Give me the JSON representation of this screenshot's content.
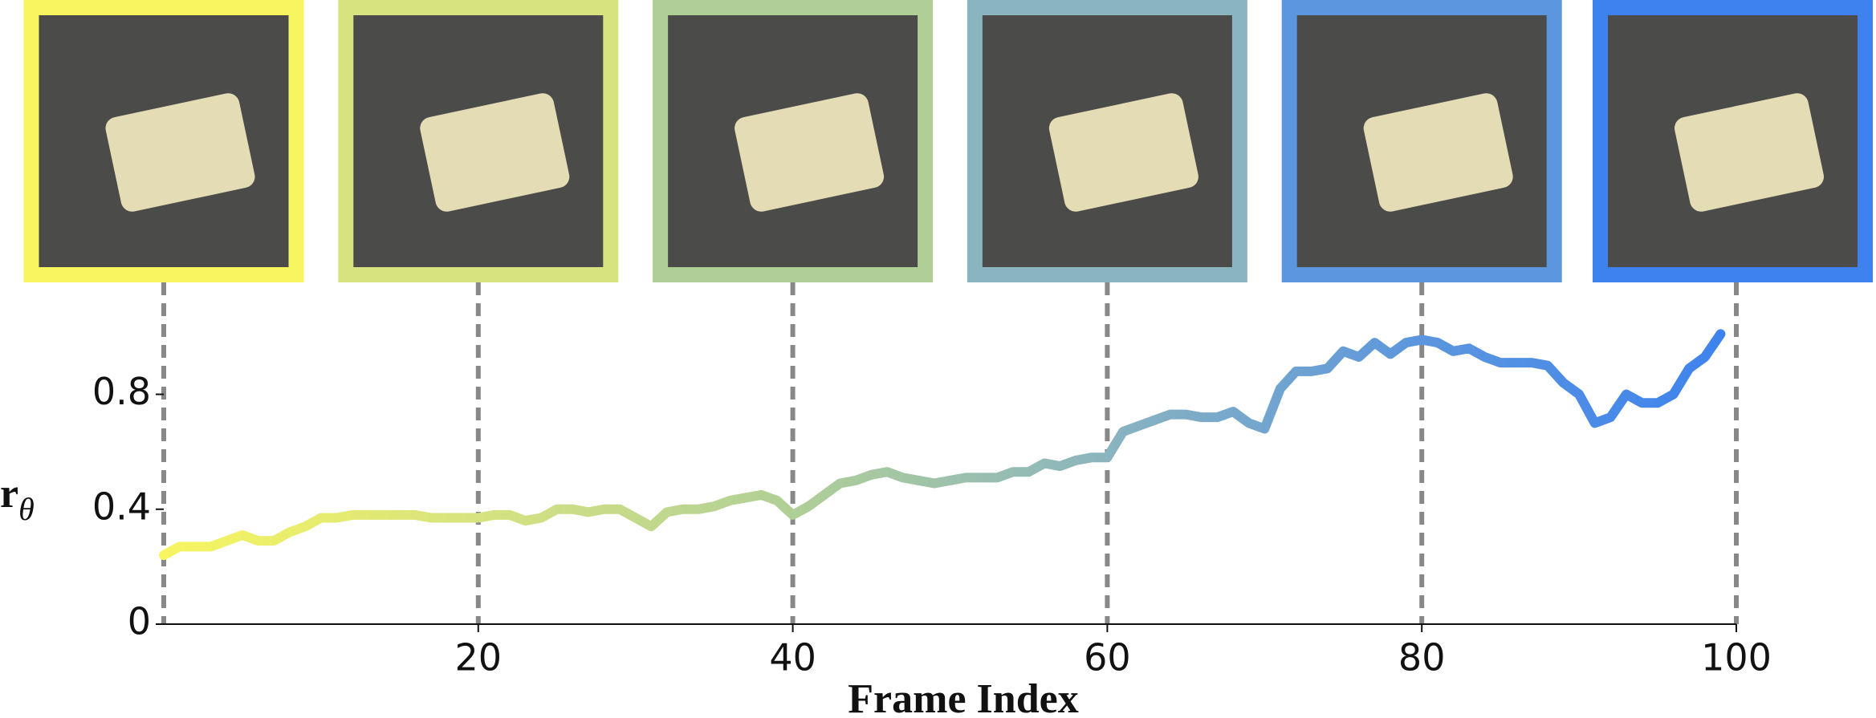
{
  "chart_data": {
    "type": "line",
    "xlabel": "Frame Index",
    "ylabel": {
      "base": "r",
      "sub": "θ"
    },
    "xlim": [
      0,
      100
    ],
    "xticks": [
      20,
      40,
      60,
      80,
      100
    ],
    "ylim": [
      0,
      1.05
    ],
    "yticks": [
      0,
      0.4,
      0.8
    ],
    "keyframes": [
      0,
      20,
      40,
      60,
      80,
      100
    ],
    "keyframe_colors": [
      "#f7f560",
      "#d6e37f",
      "#b0cf97",
      "#8ab4bf",
      "#5b96de",
      "#3d82ee"
    ],
    "x": [
      0,
      1,
      2,
      3,
      4,
      5,
      6,
      7,
      8,
      9,
      10,
      11,
      12,
      13,
      14,
      15,
      16,
      17,
      18,
      19,
      20,
      21,
      22,
      23,
      24,
      25,
      26,
      27,
      28,
      29,
      30,
      31,
      32,
      33,
      34,
      35,
      36,
      37,
      38,
      39,
      40,
      41,
      42,
      43,
      44,
      45,
      46,
      47,
      48,
      49,
      50,
      51,
      52,
      53,
      54,
      55,
      56,
      57,
      58,
      59,
      60,
      61,
      62,
      63,
      64,
      65,
      66,
      67,
      68,
      69,
      70,
      71,
      72,
      73,
      74,
      75,
      76,
      77,
      78,
      79,
      80,
      81,
      82,
      83,
      84,
      85,
      86,
      87,
      88,
      89,
      90,
      91,
      92,
      93,
      94,
      95,
      96,
      97,
      98,
      99
    ],
    "values": [
      0.24,
      0.27,
      0.27,
      0.27,
      0.29,
      0.31,
      0.29,
      0.29,
      0.32,
      0.34,
      0.37,
      0.37,
      0.38,
      0.38,
      0.38,
      0.38,
      0.38,
      0.37,
      0.37,
      0.37,
      0.37,
      0.38,
      0.38,
      0.36,
      0.37,
      0.4,
      0.4,
      0.39,
      0.4,
      0.4,
      0.37,
      0.34,
      0.39,
      0.4,
      0.4,
      0.41,
      0.43,
      0.44,
      0.45,
      0.43,
      0.38,
      0.41,
      0.45,
      0.49,
      0.5,
      0.52,
      0.53,
      0.51,
      0.5,
      0.49,
      0.5,
      0.51,
      0.51,
      0.51,
      0.53,
      0.53,
      0.56,
      0.55,
      0.57,
      0.58,
      0.58,
      0.67,
      0.69,
      0.71,
      0.73,
      0.73,
      0.72,
      0.72,
      0.74,
      0.7,
      0.68,
      0.82,
      0.88,
      0.88,
      0.89,
      0.95,
      0.93,
      0.98,
      0.94,
      0.98,
      0.99,
      0.98,
      0.95,
      0.96,
      0.93,
      0.91,
      0.91,
      0.91,
      0.9,
      0.84,
      0.8,
      0.7,
      0.72,
      0.8,
      0.77,
      0.77,
      0.8,
      0.89,
      0.93,
      1.01
    ]
  }
}
